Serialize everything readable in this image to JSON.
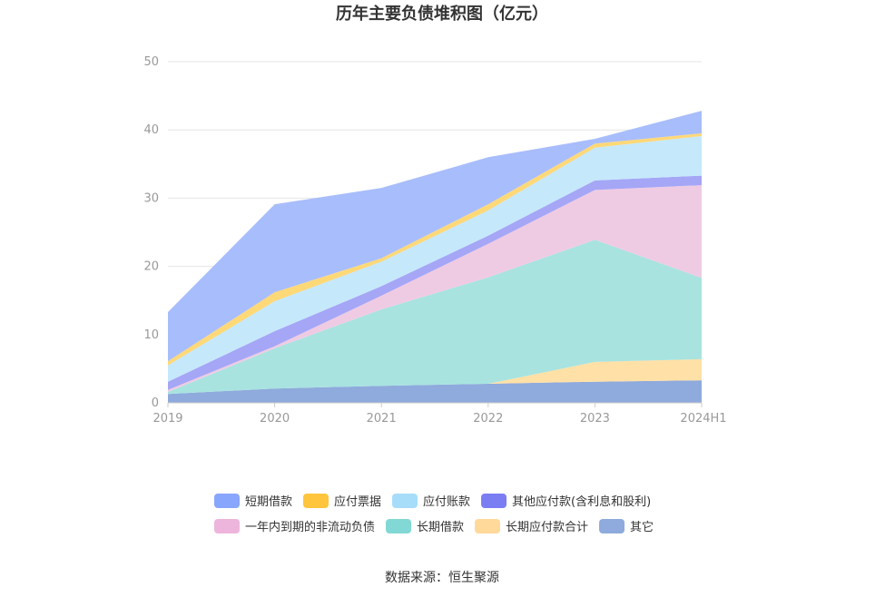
{
  "chart_data": {
    "type": "area",
    "stacked": true,
    "title": "历年主要负债堆积图（亿元）",
    "categories": [
      "2019",
      "2020",
      "2021",
      "2022",
      "2023",
      "2024H1"
    ],
    "ylim": [
      0,
      50
    ],
    "yticks": [
      "0",
      "10",
      "20",
      "30",
      "40",
      "50"
    ],
    "grid": true,
    "legend_position": "bottom",
    "series": [
      {
        "name": "其它",
        "color": "#8faadc",
        "values": [
          1.3,
          2.1,
          2.5,
          2.8,
          3.1,
          3.3
        ]
      },
      {
        "name": "长期应付款合计",
        "color": "#ffe0a6",
        "values": [
          0.0,
          0.0,
          0.0,
          0.0,
          2.9,
          3.1
        ]
      },
      {
        "name": "长期借款",
        "color": "#a8e3e0",
        "values": [
          0.3,
          5.9,
          11.2,
          15.6,
          17.9,
          11.9
        ]
      },
      {
        "name": "一年内到期的非流动负债",
        "color": "#efcbe3",
        "values": [
          0.3,
          0.3,
          2.0,
          4.9,
          7.3,
          13.6
        ]
      },
      {
        "name": "其他应付款(含利息和股利)",
        "color": "#a5a6f6",
        "values": [
          1.2,
          2.2,
          1.4,
          1.2,
          1.4,
          1.4
        ]
      },
      {
        "name": "应付账款",
        "color": "#c5e8fb",
        "values": [
          2.4,
          4.4,
          3.6,
          3.7,
          4.8,
          5.8
        ]
      },
      {
        "name": "应付票据",
        "color": "#ffd878",
        "values": [
          0.6,
          1.3,
          0.5,
          0.9,
          0.6,
          0.4
        ]
      },
      {
        "name": "短期借款",
        "color": "#a8bdfb",
        "values": [
          7.2,
          12.9,
          10.3,
          6.9,
          0.7,
          3.3
        ]
      }
    ],
    "legend": [
      {
        "name": "短期借款",
        "color": "#88a6fb"
      },
      {
        "name": "应付票据",
        "color": "#ffc53d"
      },
      {
        "name": "应付账款",
        "color": "#a8ddfa"
      },
      {
        "name": "其他应付款(含利息和股利)",
        "color": "#7b7ef3"
      },
      {
        "name": "一年内到期的非流动负债",
        "color": "#edb5dc"
      },
      {
        "name": "长期借款",
        "color": "#82d8d4"
      },
      {
        "name": "长期应付款合计",
        "color": "#ffd99a"
      },
      {
        "name": "其它",
        "color": "#8faadc"
      }
    ]
  },
  "source": "数据来源：恒生聚源"
}
